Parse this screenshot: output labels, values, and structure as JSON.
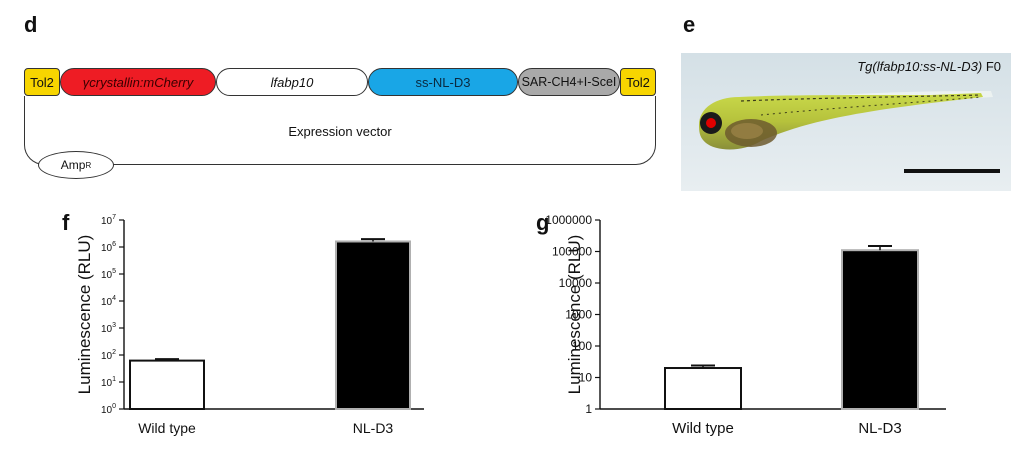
{
  "panel_labels": {
    "d": "d",
    "e": "e",
    "f": "f",
    "g": "g"
  },
  "construct": {
    "tol2_left": "Tol2",
    "mcherry": "γcrystallin:mCherry",
    "lfabp10": "lfabp10",
    "ss_nl_d3": "ss-NL-D3",
    "sar": "SAR-CH4+I-SceI",
    "tol2_right": "Tol2",
    "vector_label": "Expression vector",
    "amp": "Amp",
    "amp_sup": "R",
    "colors": {
      "tol2": "#f7d500",
      "mcherry": "#ee1c24",
      "ss_nl_d3": "#19a6e6",
      "sar": "#a9a9a9"
    }
  },
  "photo": {
    "title_italic": "Tg(lfabp10:ss-NL-D3)",
    "title_suffix": " F0"
  },
  "chart_data": [
    {
      "type": "bar",
      "panel": "f",
      "scale": "log",
      "categories": [
        "Wild type",
        "NL-D3"
      ],
      "values": [
        62,
        1600000
      ],
      "errors": [
        8,
        350000
      ],
      "bar_colors": [
        "#ffffff",
        "#000000"
      ],
      "ylabel": "Luminescence (RLU)",
      "ylim": [
        1,
        10000000
      ],
      "yticks": [
        "10^0",
        "10^1",
        "10^2",
        "10^3",
        "10^4",
        "10^5",
        "10^6",
        "10^7"
      ]
    },
    {
      "type": "bar",
      "panel": "g",
      "scale": "log",
      "categories": [
        "Wild type",
        "NL-D3"
      ],
      "values": [
        20,
        110000
      ],
      "errors": [
        4,
        40000
      ],
      "bar_colors": [
        "#ffffff",
        "#000000"
      ],
      "ylabel": "Luminescence (RLU)",
      "ylim": [
        1,
        1000000
      ],
      "yticks": [
        "1",
        "10",
        "100",
        "1000",
        "10000",
        "100000",
        "1000000"
      ]
    }
  ]
}
